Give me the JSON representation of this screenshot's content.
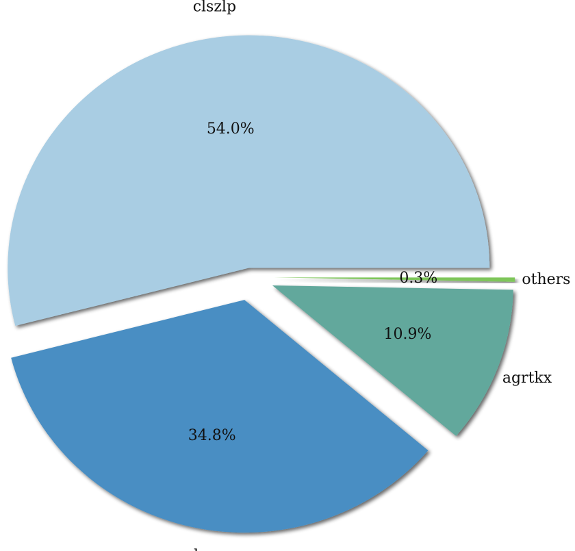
{
  "chart_data": {
    "type": "pie",
    "categories": [
      "clszlp",
      "mseshy",
      "agrtkx",
      "others"
    ],
    "values": [
      54.0,
      34.8,
      10.9,
      0.3
    ],
    "value_labels": [
      "54.0%",
      "34.8%",
      "10.9%",
      "0.3%"
    ],
    "colors": [
      "#a9cde3",
      "#4a8ec3",
      "#62a89c",
      "#7ec65a"
    ]
  }
}
